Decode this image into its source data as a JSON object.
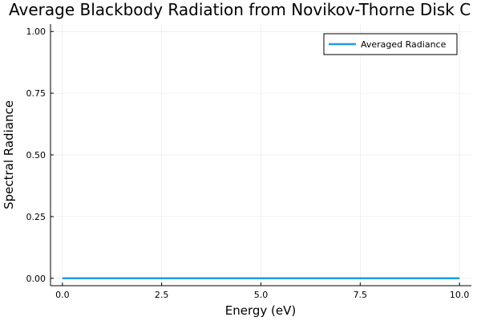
{
  "chart_data": {
    "type": "line",
    "title": "Average Blackbody Radiation from Novikov-Thorne Disk C",
    "xlabel": "Energy (eV)",
    "ylabel": "Spectral Radiance",
    "xlim": [
      -0.3,
      10.3
    ],
    "ylim": [
      -0.03,
      1.03
    ],
    "xticks": [
      0.0,
      2.5,
      5.0,
      7.5,
      10.0
    ],
    "xtick_labels": [
      "0.0",
      "2.5",
      "5.0",
      "7.5",
      "10.0"
    ],
    "yticks": [
      0.0,
      0.25,
      0.5,
      0.75,
      1.0
    ],
    "ytick_labels": [
      "0.00",
      "0.25",
      "0.50",
      "0.75",
      "1.00"
    ],
    "grid": true,
    "legend_position": "top-right",
    "series": [
      {
        "name": "Averaged Radiance",
        "color": "#1f9be6",
        "x": [
          0.0,
          2.5,
          5.0,
          7.5,
          10.0
        ],
        "y": [
          0.0,
          0.0,
          0.0,
          0.0,
          0.0
        ]
      }
    ]
  }
}
